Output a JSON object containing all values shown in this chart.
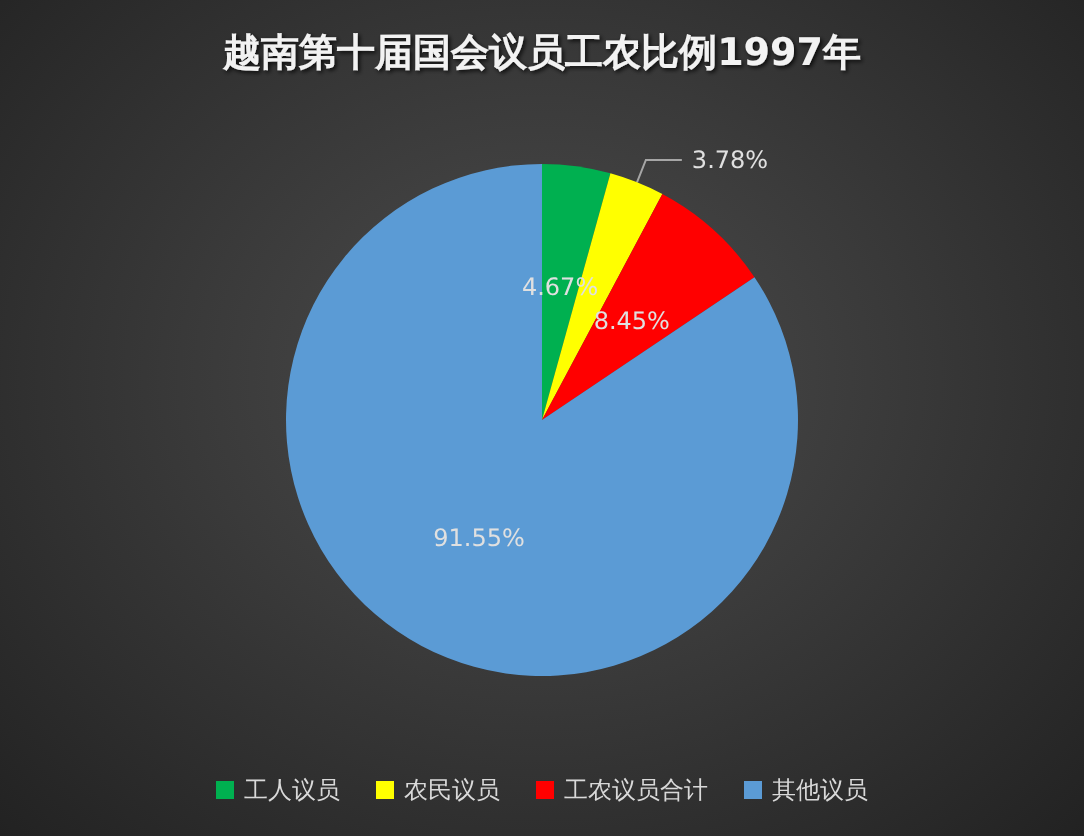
{
  "chart_data": {
    "type": "pie",
    "title": "越南第十届国会议员工农比例1997年",
    "categories": [
      "工人议员",
      "农民议员",
      "工农议员合计",
      "其他议员"
    ],
    "values": [
      4.67,
      3.78,
      8.45,
      91.55
    ],
    "colors": [
      "#00b050",
      "#ffff00",
      "#ff0000",
      "#5b9bd5"
    ],
    "value_labels": [
      "4.67%",
      "3.78%",
      "8.45%",
      "91.55%"
    ],
    "legend": "bottom"
  }
}
